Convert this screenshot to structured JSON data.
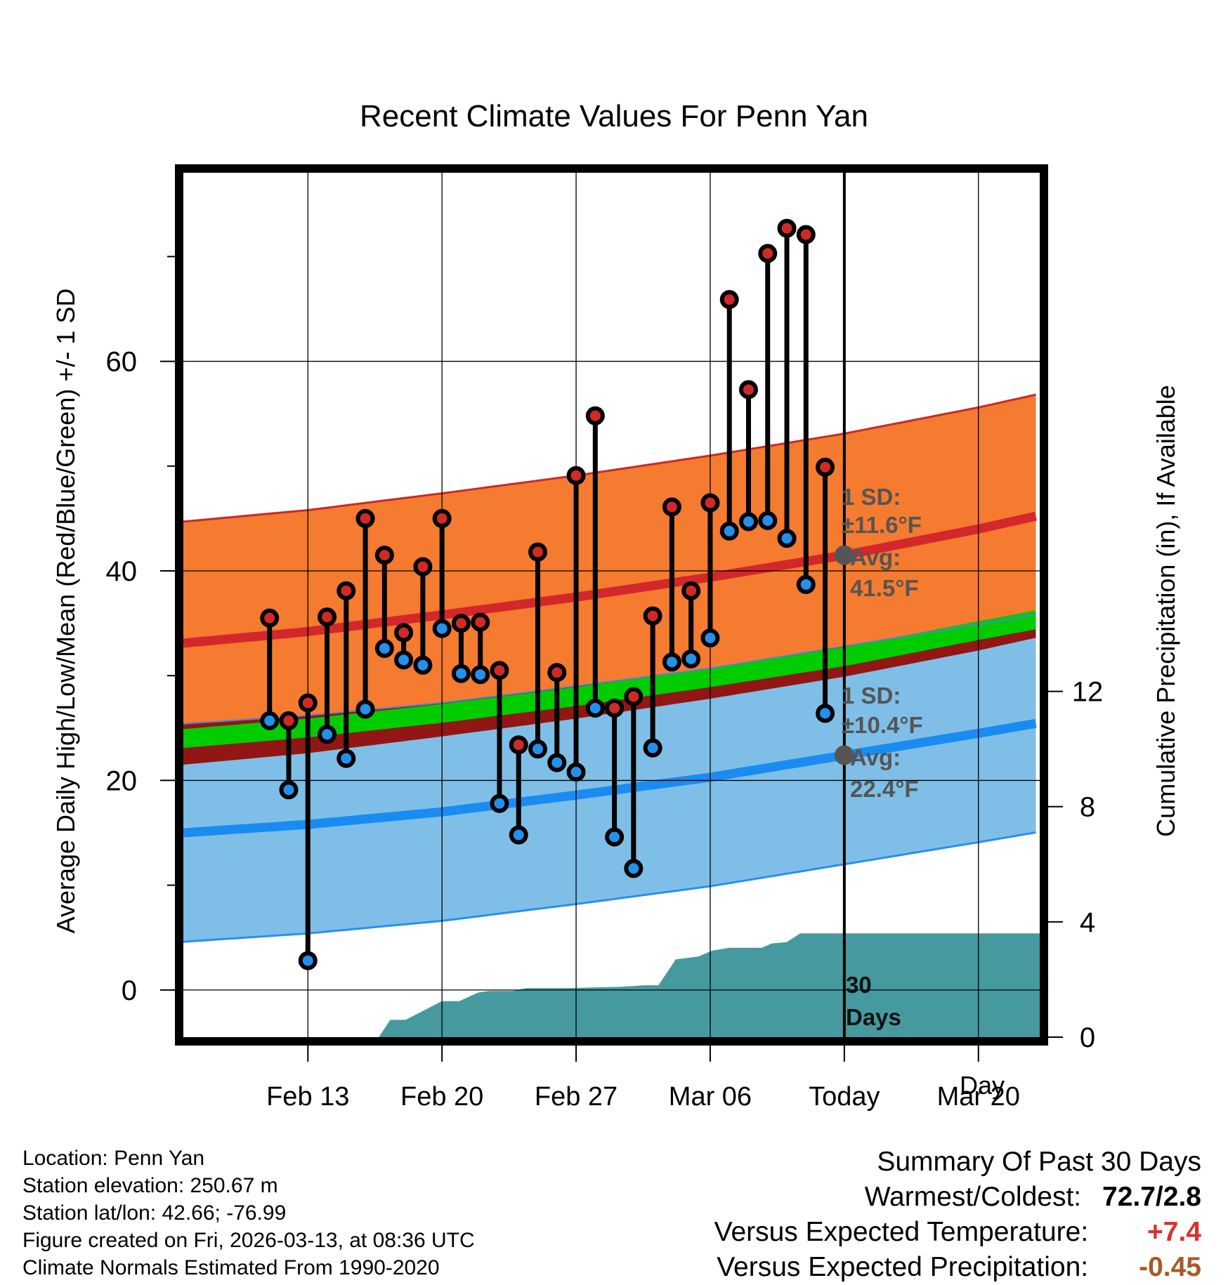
{
  "chart_data": {
    "type": "climate-range",
    "title": "Recent Climate Values For Penn Yan",
    "xlabel": "Day",
    "ylabel": "Average Daily High/Low/Mean (Red/Blue/Green) +/- 1 SD",
    "y2label": "Cumulative Precipitation (in), If Available",
    "ylim": [
      -4.5,
      78
    ],
    "y2lim": [
      0,
      30
    ],
    "y_ticks": [
      0,
      20,
      40,
      60
    ],
    "y_minor_ticks": [
      10,
      30,
      50,
      70
    ],
    "y2_ticks": [
      0,
      4,
      8,
      12
    ],
    "x_range": [
      -34.5,
      10.2
    ],
    "x_ticks": [
      {
        "day": -28,
        "label": "Feb 13"
      },
      {
        "day": -21,
        "label": "Feb 20"
      },
      {
        "day": -14,
        "label": "Feb 27"
      },
      {
        "day": -7,
        "label": "Mar 06"
      },
      {
        "day": 0,
        "label": "Today"
      },
      {
        "day": 7,
        "label": "Mar 20"
      }
    ],
    "normals": {
      "high_mean": [
        [
          -34.5,
          33.1
        ],
        [
          -28,
          34.2
        ],
        [
          -21,
          35.8
        ],
        [
          -14,
          37.5
        ],
        [
          -7,
          39.4
        ],
        [
          0,
          41.5
        ],
        [
          7,
          44.0
        ],
        [
          10.2,
          45.3
        ]
      ],
      "high_sd": 11.6,
      "low_mean": [
        [
          -34.5,
          15.0
        ],
        [
          -28,
          15.8
        ],
        [
          -21,
          17.0
        ],
        [
          -14,
          18.6
        ],
        [
          -7,
          20.3
        ],
        [
          0,
          22.4
        ],
        [
          7,
          24.5
        ],
        [
          10.2,
          25.5
        ]
      ],
      "low_sd": 10.4,
      "mean_temp": [
        [
          -34.5,
          24.0
        ],
        [
          -28,
          25.0
        ],
        [
          -21,
          26.4
        ],
        [
          -14,
          28.0
        ],
        [
          -7,
          29.8
        ],
        [
          0,
          31.8
        ],
        [
          7,
          34.3
        ],
        [
          10.2,
          35.4
        ]
      ]
    },
    "observations": [
      {
        "day": -30,
        "high": 35.5,
        "low": 25.7
      },
      {
        "day": -29,
        "high": 25.7,
        "low": 19.1
      },
      {
        "day": -28,
        "high": 27.4,
        "low": 2.8
      },
      {
        "day": -27,
        "high": 35.6,
        "low": 24.4
      },
      {
        "day": -26,
        "high": 38.1,
        "low": 22.1
      },
      {
        "day": -25,
        "high": 45.0,
        "low": 26.8
      },
      {
        "day": -24,
        "high": 41.5,
        "low": 32.6
      },
      {
        "day": -23,
        "high": 34.1,
        "low": 31.5
      },
      {
        "day": -22,
        "high": 40.4,
        "low": 31.0
      },
      {
        "day": -21,
        "high": 45.0,
        "low": 34.5
      },
      {
        "day": -20,
        "high": 35.0,
        "low": 30.2
      },
      {
        "day": -19,
        "high": 35.1,
        "low": 30.1
      },
      {
        "day": -18,
        "high": 30.5,
        "low": 17.8
      },
      {
        "day": -17,
        "high": 23.4,
        "low": 14.8
      },
      {
        "day": -16,
        "high": 41.8,
        "low": 23.0
      },
      {
        "day": -15,
        "high": 30.3,
        "low": 21.7
      },
      {
        "day": -14,
        "high": 49.1,
        "low": 20.8
      },
      {
        "day": -13,
        "high": 54.8,
        "low": 26.9
      },
      {
        "day": -12,
        "high": 26.9,
        "low": 14.6
      },
      {
        "day": -11,
        "high": 28.0,
        "low": 11.6
      },
      {
        "day": -10,
        "high": 35.7,
        "low": 23.1
      },
      {
        "day": -9,
        "high": 46.1,
        "low": 31.3
      },
      {
        "day": -8,
        "high": 38.1,
        "low": 31.6
      },
      {
        "day": -7,
        "high": 46.5,
        "low": 33.6
      },
      {
        "day": -6,
        "high": 65.9,
        "low": 43.8
      },
      {
        "day": -5,
        "high": 57.3,
        "low": 44.7
      },
      {
        "day": -4,
        "high": 70.3,
        "low": 44.8
      },
      {
        "day": -3,
        "high": 72.7,
        "low": 43.1
      },
      {
        "day": -2,
        "high": 72.1,
        "low": 38.7
      },
      {
        "day": -1,
        "high": 49.9,
        "low": 26.4
      }
    ],
    "precip_cumulative": [
      [
        -27.6,
        0.0
      ],
      [
        -24.3,
        0.0
      ],
      [
        -23.7,
        0.6
      ],
      [
        -22.9,
        0.6
      ],
      [
        -21.0,
        1.25
      ],
      [
        -20.1,
        1.25
      ],
      [
        -19.1,
        1.55
      ],
      [
        -18.5,
        1.6
      ],
      [
        -17.3,
        1.6
      ],
      [
        -16.6,
        1.7
      ],
      [
        -14.6,
        1.7
      ],
      [
        -11.6,
        1.75
      ],
      [
        -10.4,
        1.8
      ],
      [
        -9.7,
        1.8
      ],
      [
        -8.8,
        2.7
      ],
      [
        -7.6,
        2.8
      ],
      [
        -6.9,
        3.0
      ],
      [
        -6.0,
        3.1
      ],
      [
        -4.3,
        3.1
      ],
      [
        -3.8,
        3.25
      ],
      [
        -3.0,
        3.3
      ],
      [
        -2.3,
        3.6
      ],
      [
        10.2,
        3.6
      ]
    ],
    "annotations": {
      "high_sd_label": "1 SD:",
      "high_sd_value": "±11.6°F",
      "high_avg_label": "Avg:",
      "high_avg_value": "41.5°F",
      "low_sd_label": "1 SD:",
      "low_sd_value": "±10.4°F",
      "low_avg_label": "Avg:",
      "low_avg_value": "22.4°F",
      "period_number": "30",
      "period_unit": "Days"
    }
  },
  "colors": {
    "high_band": "#f47b2f",
    "high_line": "#d3272c",
    "high_edge": "#cc2a24",
    "low_band": "#7fbfe7",
    "low_line": "#1a8cf1",
    "low_edge": "#2a8ef0",
    "mean_band": "#00cc00",
    "overlap": "#911614",
    "precip": "#469a9f",
    "high_dot": "#d02a26",
    "low_dot": "#2291ec",
    "marker": "#555555",
    "positive": "#d8302c",
    "precip_text": "#a75a28"
  },
  "footer": {
    "location": "Location: Penn Yan",
    "elevation": "Station elevation: 250.67 m",
    "latlon": "Station lat/lon: 42.66; -76.99",
    "created": "Figure created on Fri, 2026-03-13, at 08:36 UTC",
    "normals": "Climate Normals Estimated From 1990-2020"
  },
  "summary": {
    "heading": "Summary Of Past 30 Days",
    "warm_cold_label": "Warmest/Coldest:",
    "warm_cold_value": "72.7/2.8",
    "temp_label": "Versus Expected Temperature:",
    "temp_value": "+7.4",
    "precip_label": "Versus Expected Precipitation:",
    "precip_value": "-0.45"
  }
}
